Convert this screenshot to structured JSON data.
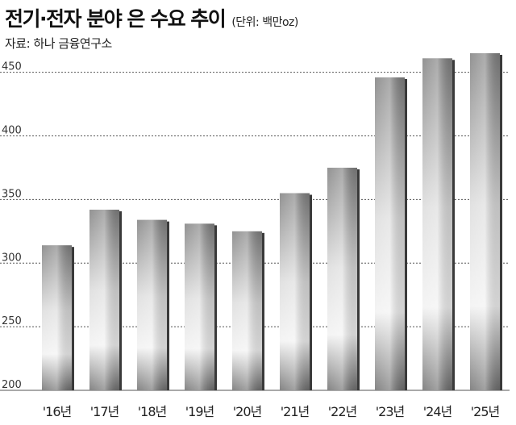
{
  "header": {
    "title": "전기·전자 분야 은 수요 추이",
    "unit": "(단위: 백만oz)",
    "source": "자료: 하나 금융연구소"
  },
  "chart_data": {
    "type": "bar",
    "title": "전기·전자 분야 은 수요 추이",
    "unit": "(단위: 백만oz)",
    "source": "자료: 하나 금융연구소",
    "xlabel": "",
    "ylabel": "",
    "categories": [
      "'16년",
      "'17년",
      "'18년",
      "'19년",
      "'20년",
      "'21년",
      "'22년",
      "'23년",
      "'24년",
      "'25년"
    ],
    "values": [
      314,
      342,
      334,
      331,
      325,
      355,
      375,
      446,
      461,
      465
    ],
    "ylim": [
      200,
      465
    ],
    "yticks": [
      200,
      250,
      300,
      350,
      400,
      450
    ],
    "grid": true,
    "bar_style": "silver-gradient"
  }
}
